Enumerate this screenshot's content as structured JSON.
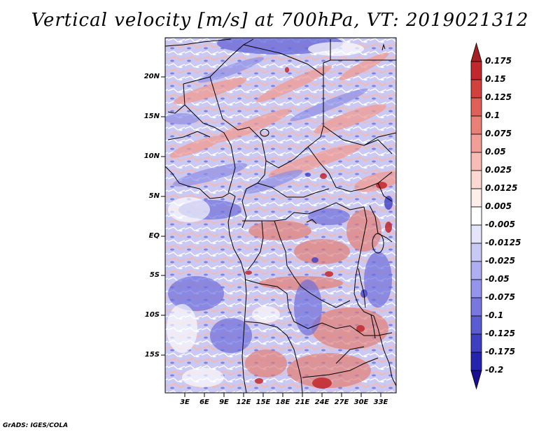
{
  "title": "Vertical velocity [m/s] at 700hPa, VT: 2019021312",
  "lat_labels": [
    "20N",
    "15N",
    "10N",
    "5N",
    "EQ",
    "5S",
    "10S",
    "15S"
  ],
  "lon_labels": [
    "3E",
    "6E",
    "9E",
    "12E",
    "15E",
    "18E",
    "21E",
    "24E",
    "27E",
    "30E",
    "33E"
  ],
  "colorbar": {
    "labels": [
      "0.175",
      "0.15",
      "0.125",
      "0.1",
      "0.075",
      "0.05",
      "0.025",
      "0.0125",
      "0.005",
      "-0.005",
      "-0.0125",
      "-0.025",
      "-0.05",
      "-0.075",
      "-0.1",
      "-0.125",
      "-0.175",
      "-0.2"
    ],
    "colors": [
      "#a51f24",
      "#c1272d",
      "#d2423d",
      "#df6059",
      "#e97f77",
      "#f19e96",
      "#f7bdb5",
      "#fbd8d2",
      "#fdeeea",
      "#ffffff",
      "#e4e4fb",
      "#c9c9f6",
      "#aeaef0",
      "#9494ea",
      "#7878df",
      "#5c5cd2",
      "#3f3fc2",
      "#2424ae",
      "#1a1090"
    ]
  },
  "credit": "GrADS: IGES/COLA"
}
